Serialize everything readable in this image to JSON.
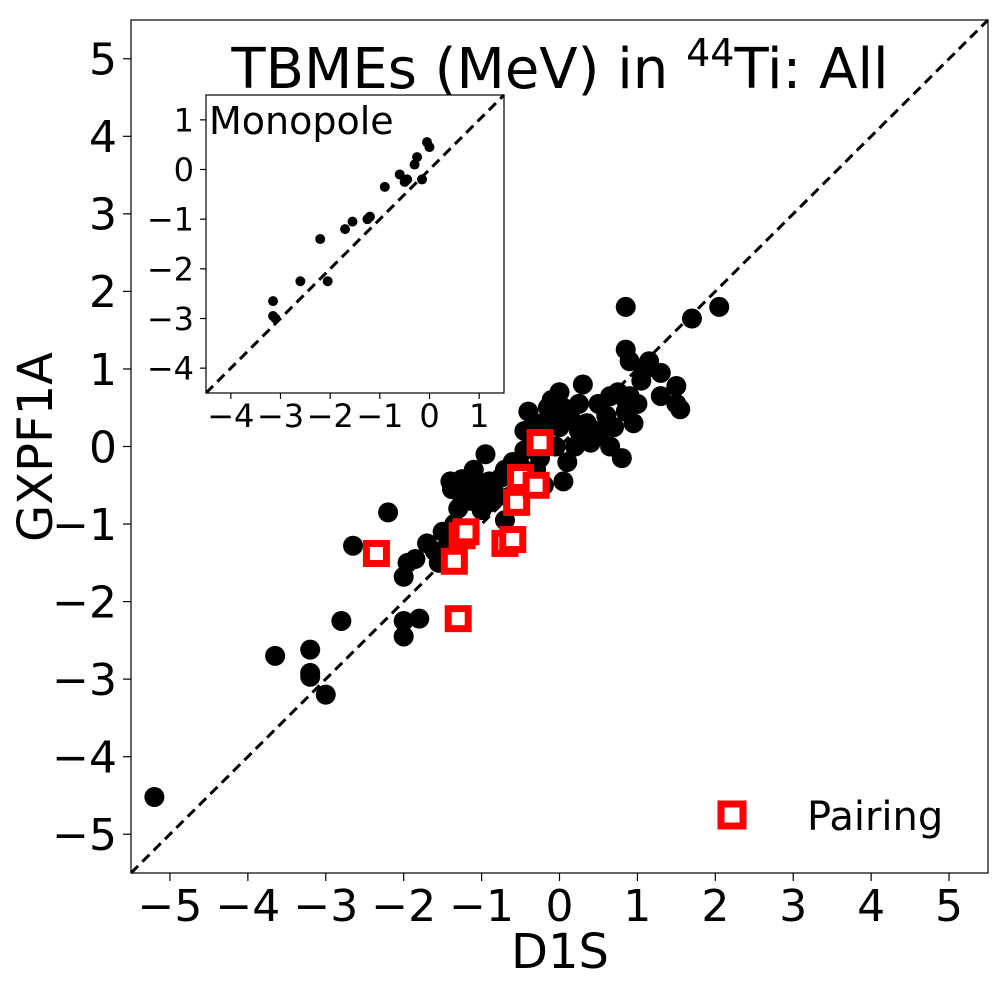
{
  "chart_data": [
    {
      "id": "main",
      "type": "scatter",
      "title_main": "TBMEs (MeV) in ",
      "title_sup": "44",
      "title_rest": "Ti: All",
      "xlabel": "D1S",
      "ylabel": "GXPF1A",
      "xlim": [
        -5.5,
        5.5
      ],
      "ylim": [
        -5.5,
        5.5
      ],
      "xticks": [
        -5,
        -4,
        -3,
        -2,
        -1,
        0,
        1,
        2,
        3,
        4,
        5
      ],
      "yticks": [
        -5,
        -4,
        -3,
        -2,
        -1,
        0,
        1,
        2,
        3,
        4,
        5
      ],
      "tick_labels": [
        "−5",
        "−4",
        "−3",
        "−2",
        "−1",
        "0",
        "1",
        "2",
        "3",
        "4",
        "5"
      ],
      "grid": false,
      "diagonal": "y = x (dashed)",
      "legend_position": "bottom-right",
      "series": [
        {
          "marker": "circle",
          "color": "#000000",
          "points": [
            [
              -5.2,
              -4.52
            ],
            [
              -3.65,
              -2.7
            ],
            [
              -3.2,
              -2.62
            ],
            [
              -3.2,
              -2.92
            ],
            [
              -3.2,
              -2.97
            ],
            [
              -3.0,
              -3.2
            ],
            [
              -2.8,
              -2.25
            ],
            [
              -2.65,
              -1.28
            ],
            [
              -2.35,
              -1.38
            ],
            [
              -2.2,
              -0.85
            ],
            [
              -2.0,
              -1.68
            ],
            [
              -2.0,
              -2.25
            ],
            [
              -2.0,
              -2.45
            ],
            [
              -1.95,
              -1.5
            ],
            [
              -1.85,
              -1.45
            ],
            [
              -1.8,
              -2.22
            ],
            [
              -1.7,
              -1.25
            ],
            [
              -1.6,
              -1.35
            ],
            [
              -1.55,
              -1.5
            ],
            [
              -1.5,
              -1.1
            ],
            [
              -1.45,
              -1.3
            ],
            [
              -1.4,
              -0.45
            ],
            [
              -1.38,
              -0.55
            ],
            [
              -1.35,
              -1.0
            ],
            [
              -1.3,
              -0.8
            ],
            [
              -1.3,
              -0.58
            ],
            [
              -1.25,
              -0.42
            ],
            [
              -1.2,
              -0.6
            ],
            [
              -1.2,
              -1.2
            ],
            [
              -1.15,
              -0.7
            ],
            [
              -1.1,
              -0.45
            ],
            [
              -1.1,
              -0.3
            ],
            [
              -1.05,
              -0.55
            ],
            [
              -1.0,
              -0.82
            ],
            [
              -1.0,
              -0.62
            ],
            [
              -0.95,
              -0.1
            ],
            [
              -0.9,
              -0.45
            ],
            [
              -0.9,
              -0.72
            ],
            [
              -0.85,
              -0.55
            ],
            [
              -0.8,
              -0.65
            ],
            [
              -0.75,
              -0.4
            ],
            [
              -0.7,
              -0.95
            ],
            [
              -0.7,
              -0.3
            ],
            [
              -0.65,
              -0.65
            ],
            [
              -0.6,
              -0.2
            ],
            [
              -0.55,
              -0.5
            ],
            [
              -0.5,
              -0.25
            ],
            [
              -0.45,
              -0.05
            ],
            [
              -0.45,
              0.2
            ],
            [
              -0.4,
              -0.42
            ],
            [
              -0.4,
              0.45
            ],
            [
              -0.35,
              0.1
            ],
            [
              -0.3,
              -0.3
            ],
            [
              -0.3,
              0.3
            ],
            [
              -0.25,
              -0.15
            ],
            [
              -0.2,
              0.12
            ],
            [
              -0.2,
              -0.5
            ],
            [
              -0.15,
              0.5
            ],
            [
              -0.1,
              0.35
            ],
            [
              -0.1,
              0.6
            ],
            [
              -0.05,
              0.0
            ],
            [
              0.0,
              0.7
            ],
            [
              0.0,
              0.25
            ],
            [
              0.05,
              -0.45
            ],
            [
              0.05,
              0.5
            ],
            [
              0.1,
              -0.2
            ],
            [
              0.15,
              0.35
            ],
            [
              0.2,
              0.0
            ],
            [
              0.25,
              0.2
            ],
            [
              0.25,
              0.55
            ],
            [
              0.3,
              0.8
            ],
            [
              0.35,
              0.3
            ],
            [
              0.4,
              0.05
            ],
            [
              0.45,
              0.12
            ],
            [
              0.5,
              0.55
            ],
            [
              0.55,
              0.22
            ],
            [
              0.6,
              0.4
            ],
            [
              0.65,
              0.0
            ],
            [
              0.65,
              0.65
            ],
            [
              0.7,
              0.25
            ],
            [
              0.75,
              0.7
            ],
            [
              0.8,
              -0.15
            ],
            [
              0.85,
              0.45
            ],
            [
              0.85,
              0.6
            ],
            [
              0.85,
              1.25
            ],
            [
              0.85,
              1.8
            ],
            [
              0.9,
              0.65
            ],
            [
              0.9,
              1.1
            ],
            [
              0.95,
              0.3
            ],
            [
              1.0,
              0.55
            ],
            [
              1.05,
              0.85
            ],
            [
              1.1,
              1.0
            ],
            [
              1.15,
              1.1
            ],
            [
              1.3,
              0.65
            ],
            [
              1.3,
              0.95
            ],
            [
              1.5,
              0.55
            ],
            [
              1.5,
              0.78
            ],
            [
              1.55,
              0.48
            ],
            [
              1.7,
              1.65
            ],
            [
              2.05,
              1.8
            ]
          ]
        },
        {
          "name": "Pairing",
          "marker": "hollow-square",
          "color": "#ff0000",
          "points": [
            [
              -2.35,
              -1.38
            ],
            [
              -1.35,
              -1.48
            ],
            [
              -1.3,
              -2.22
            ],
            [
              -1.25,
              -1.15
            ],
            [
              -1.2,
              -1.1
            ],
            [
              -0.7,
              -1.25
            ],
            [
              -0.6,
              -1.2
            ],
            [
              -0.55,
              -0.72
            ],
            [
              -0.5,
              -0.4
            ],
            [
              -0.3,
              -0.5
            ],
            [
              -0.25,
              0.05
            ]
          ]
        }
      ],
      "legend": [
        {
          "label": "Pairing",
          "marker": "hollow-square",
          "color": "#ff0000"
        }
      ]
    },
    {
      "id": "inset",
      "type": "scatter",
      "title": "Monopole",
      "xlim": [
        -4.5,
        1.5
      ],
      "ylim": [
        -4.5,
        1.5
      ],
      "xticks": [
        -4,
        -3,
        -2,
        -1,
        0,
        1
      ],
      "yticks": [
        -4,
        -3,
        -2,
        -1,
        0,
        1
      ],
      "tick_labels": [
        "−4",
        "−3",
        "−2",
        "−1",
        "0",
        "1"
      ],
      "grid": false,
      "diagonal": "y = x (dashed)",
      "series": [
        {
          "marker": "circle",
          "color": "#000000",
          "points": [
            [
              -3.15,
              -2.65
            ],
            [
              -3.15,
              -2.95
            ],
            [
              -3.1,
              -3.0
            ],
            [
              -2.6,
              -2.25
            ],
            [
              -2.2,
              -1.4
            ],
            [
              -2.05,
              -2.25
            ],
            [
              -1.7,
              -1.2
            ],
            [
              -1.55,
              -1.05
            ],
            [
              -1.25,
              -1.0
            ],
            [
              -1.2,
              -0.95
            ],
            [
              -0.9,
              -0.35
            ],
            [
              -0.6,
              -0.1
            ],
            [
              -0.5,
              -0.25
            ],
            [
              -0.45,
              -0.2
            ],
            [
              -0.3,
              0.1
            ],
            [
              -0.25,
              0.25
            ],
            [
              -0.15,
              -0.2
            ],
            [
              -0.05,
              0.55
            ],
            [
              0.0,
              0.45
            ]
          ]
        }
      ]
    }
  ]
}
